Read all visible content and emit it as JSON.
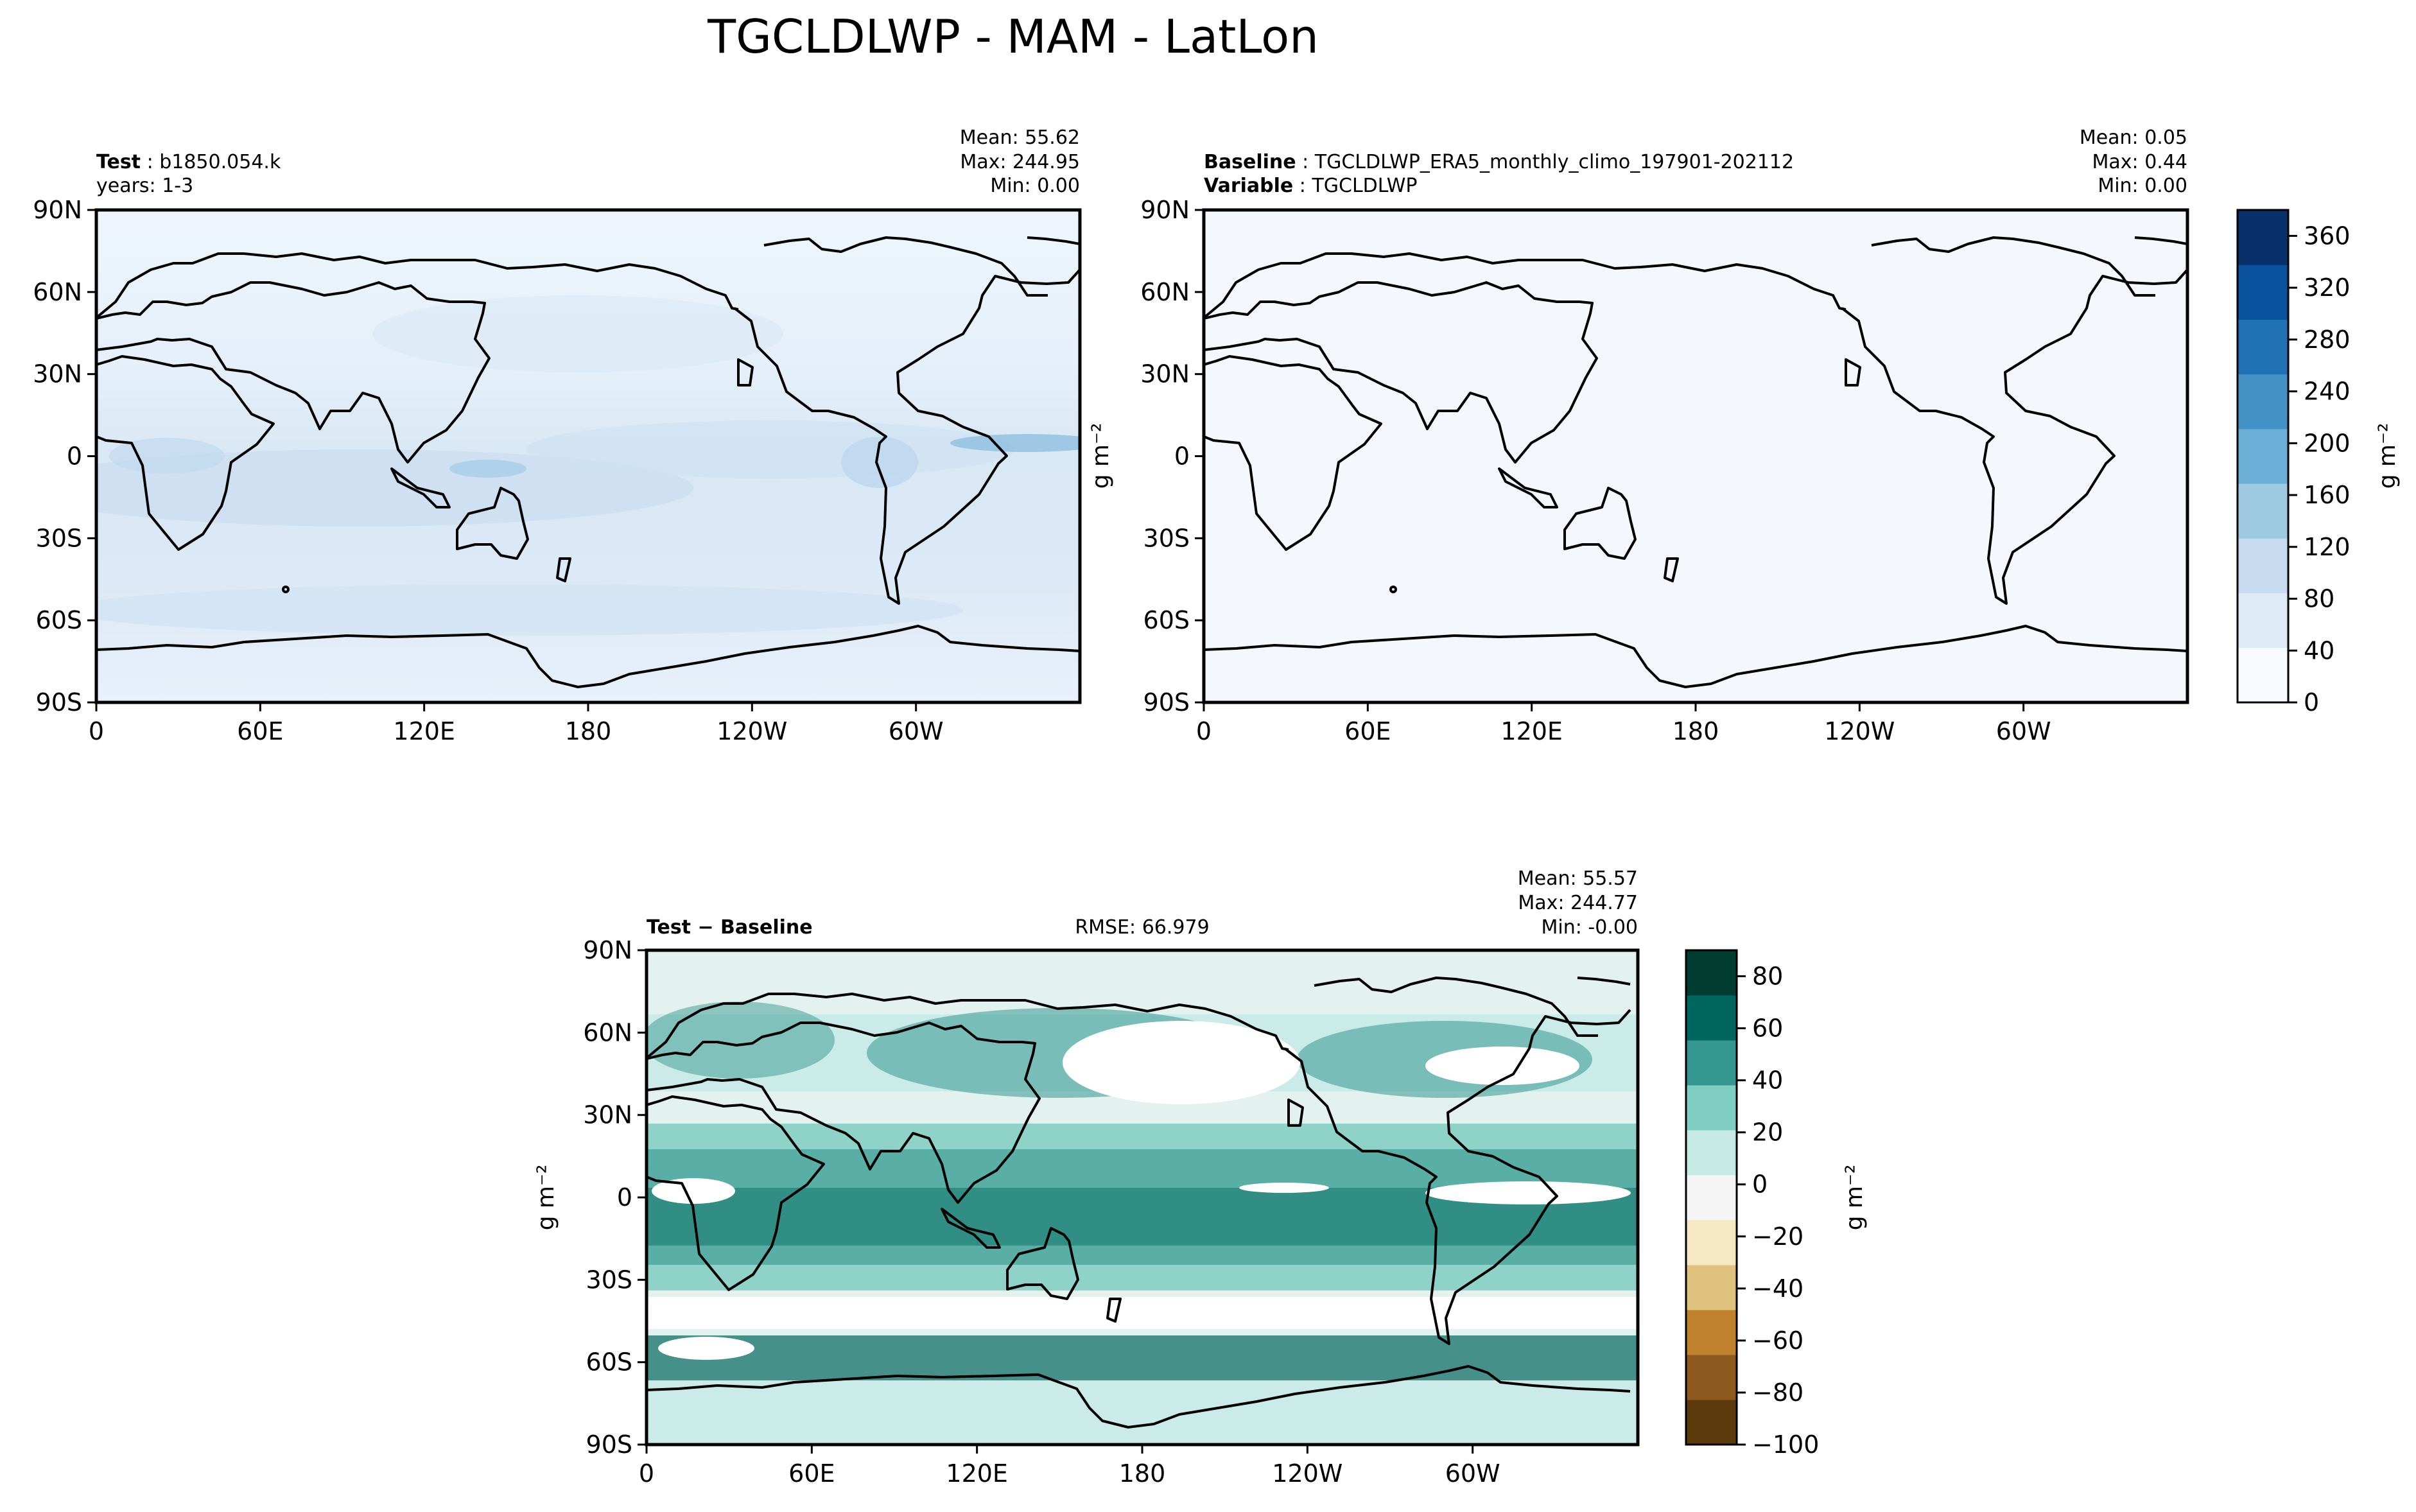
{
  "figure": {
    "title": "TGCLDLWP - MAM - LatLon"
  },
  "panels": {
    "test": {
      "label_bold": "Test",
      "case": "b1850.054.k",
      "years": "years: 1-3",
      "mean": "Mean: 55.62",
      "max": "Max: 244.95",
      "min": "Min:  0.00"
    },
    "baseline": {
      "label_bold": "Baseline",
      "case": "TGCLDLWP_ERA5_monthly_climo_197901-202112",
      "var_bold": "Variable",
      "var": "TGCLDLWP",
      "mean": "Mean:  0.05",
      "max": "Max:  0.44",
      "min": "Min:  0.00",
      "ylabel": "g m⁻²"
    },
    "diff": {
      "label": "Test − Baseline",
      "rmse": "RMSE: 66.979",
      "mean": "Mean: 55.57",
      "max": "Max: 244.77",
      "min": "Min: -0.00",
      "ylabel": "g m⁻²"
    }
  },
  "colorbars": {
    "top": {
      "unit": "g m⁻²"
    },
    "diff": {
      "unit": "g m⁻²"
    }
  },
  "chart_data": [
    {
      "type": "heatmap",
      "name": "Test",
      "x_ticks": [
        "0",
        "60E",
        "120E",
        "180",
        "120W",
        "60W"
      ],
      "y_ticks": [
        "90N",
        "60N",
        "30N",
        "0",
        "30S",
        "60S",
        "90S"
      ],
      "xlim": [
        0,
        360
      ],
      "ylim": [
        -90,
        90
      ],
      "colormap": "Blues",
      "color_range": [
        0,
        380
      ],
      "stats": {
        "mean": 55.62,
        "max": 244.95,
        "min": 0.0
      }
    },
    {
      "type": "heatmap",
      "name": "Baseline",
      "x_ticks": [
        "0",
        "60E",
        "120E",
        "180",
        "120W",
        "60W"
      ],
      "y_ticks": [
        "90N",
        "60N",
        "30N",
        "0",
        "30S",
        "60S",
        "90S"
      ],
      "xlim": [
        0,
        360
      ],
      "ylim": [
        -90,
        90
      ],
      "colormap": "Blues",
      "color_range": [
        0,
        380
      ],
      "stats": {
        "mean": 0.05,
        "max": 0.44,
        "min": 0.0
      }
    },
    {
      "type": "heatmap",
      "name": "Test − Baseline",
      "x_ticks": [
        "0",
        "60E",
        "120E",
        "180",
        "120W",
        "60W"
      ],
      "y_ticks": [
        "90N",
        "60N",
        "30N",
        "0",
        "30S",
        "60S",
        "90S"
      ],
      "xlim": [
        0,
        360
      ],
      "ylim": [
        -90,
        90
      ],
      "colormap": "BrBG",
      "color_range": [
        -100,
        90
      ],
      "stats": {
        "mean": 55.57,
        "max": 244.77,
        "min": -0.0,
        "rmse": 66.979
      }
    }
  ],
  "colorbar_scales": {
    "top": {
      "ticks": [
        "0",
        "40",
        "80",
        "120",
        "160",
        "200",
        "240",
        "280",
        "320",
        "360"
      ],
      "tick_values": [
        0,
        40,
        80,
        120,
        160,
        200,
        240,
        280,
        320,
        360
      ],
      "range": [
        0,
        380
      ],
      "colors": [
        "#f7fbff",
        "#deebf7",
        "#c6dbef",
        "#9ecae1",
        "#6baed6",
        "#4292c6",
        "#2171b5",
        "#08519c",
        "#08306b"
      ]
    },
    "diff": {
      "ticks": [
        "−100",
        "−80",
        "−60",
        "−40",
        "−20",
        "0",
        "20",
        "40",
        "60",
        "80"
      ],
      "tick_values": [
        -100,
        -80,
        -60,
        -40,
        -20,
        0,
        20,
        40,
        60,
        80
      ],
      "range": [
        -100,
        90
      ],
      "colors": [
        "#5c3a0c",
        "#8c5a1f",
        "#bf812d",
        "#dfc27d",
        "#f6e8c3",
        "#f5f5f5",
        "#c7eae5",
        "#80cdc1",
        "#35978f",
        "#01665e",
        "#003c30"
      ]
    }
  }
}
